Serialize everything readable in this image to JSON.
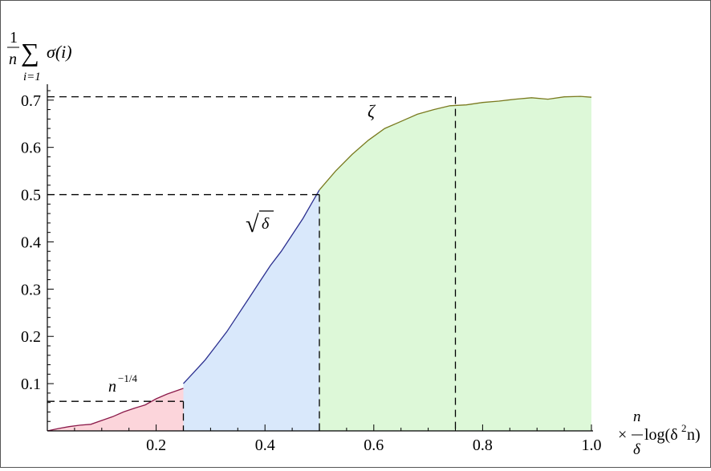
{
  "chart_data": {
    "type": "area",
    "xlim": [
      0,
      1.0
    ],
    "ylim": [
      0,
      0.72
    ],
    "x_ticks": [
      "0.2",
      "0.4",
      "0.6",
      "0.8",
      "1.0"
    ],
    "y_ticks": [
      "0.1",
      "0.2",
      "0.3",
      "0.4",
      "0.5",
      "0.6",
      "0.7"
    ],
    "x_tick_values": [
      0.2,
      0.4,
      0.6,
      0.8,
      1.0
    ],
    "y_tick_values": [
      0.1,
      0.2,
      0.3,
      0.4,
      0.5,
      0.6,
      0.7
    ],
    "ylabel": {
      "frac_num": "1",
      "frac_den": "n",
      "sum_sym": "∑",
      "sum_sub": "i=1",
      "body": "σ(i)"
    },
    "xlabel": {
      "times": "×",
      "frac_num": "n",
      "frac_den": "δ",
      "log": "log(δ",
      "sq": "2",
      "tail": "n)"
    },
    "region_labels": {
      "low": {
        "base": "n",
        "exp": "−1/4"
      },
      "mid": {
        "radical": "√",
        "body": "δ"
      },
      "high": {
        "text": "ζ"
      }
    },
    "reference_lines": [
      {
        "x": 0.25,
        "y": 0.0625
      },
      {
        "x": 0.5,
        "y": 0.5
      },
      {
        "x": 0.75,
        "y": 0.707
      }
    ],
    "series": [
      {
        "color": "#8b1a4a",
        "fill": "#fcd5db",
        "x": [
          0.0,
          0.02,
          0.04,
          0.06,
          0.08,
          0.1,
          0.12,
          0.14,
          0.16,
          0.18,
          0.2,
          0.22,
          0.24,
          0.25
        ],
        "y": [
          0.0,
          0.005,
          0.009,
          0.012,
          0.014,
          0.022,
          0.03,
          0.04,
          0.048,
          0.055,
          0.068,
          0.078,
          0.086,
          0.09
        ]
      },
      {
        "color": "#2b2f8f",
        "fill": "#d9e8fb",
        "x": [
          0.25,
          0.27,
          0.29,
          0.31,
          0.33,
          0.35,
          0.37,
          0.39,
          0.41,
          0.43,
          0.45,
          0.47,
          0.49,
          0.5
        ],
        "y": [
          0.1,
          0.125,
          0.15,
          0.18,
          0.21,
          0.245,
          0.28,
          0.315,
          0.35,
          0.38,
          0.415,
          0.45,
          0.49,
          0.51
        ]
      },
      {
        "color": "#7a7a1f",
        "fill": "#ddf8d8",
        "x": [
          0.5,
          0.53,
          0.56,
          0.59,
          0.62,
          0.65,
          0.68,
          0.71,
          0.74,
          0.77,
          0.8,
          0.83,
          0.86,
          0.89,
          0.92,
          0.95,
          0.98,
          1.0
        ],
        "y": [
          0.51,
          0.55,
          0.585,
          0.615,
          0.64,
          0.655,
          0.67,
          0.68,
          0.688,
          0.69,
          0.695,
          0.698,
          0.702,
          0.705,
          0.702,
          0.707,
          0.708,
          0.706
        ]
      }
    ]
  }
}
